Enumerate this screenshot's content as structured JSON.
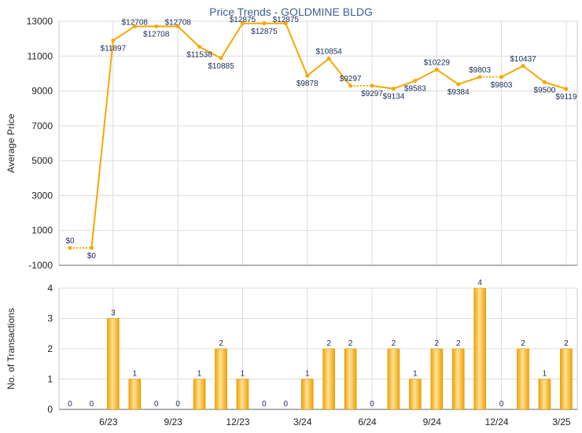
{
  "chart_data": [
    {
      "type": "line",
      "title": "Price Trends - GOLDMINE BLDG",
      "xlabel": "",
      "ylabel": "Average Price",
      "ylim": [
        -1000,
        13000
      ],
      "yticks": [
        -1000,
        1000,
        3000,
        5000,
        7000,
        9000,
        11000,
        13000
      ],
      "grid": true,
      "x_tick_labels": [
        "6/23",
        "9/23",
        "12/23",
        "3/24",
        "6/24",
        "9/24",
        "12/24",
        "3/25"
      ],
      "x_tick_positions": [
        2,
        5,
        8,
        11,
        14,
        17,
        20,
        23
      ],
      "x": [
        0,
        1,
        2,
        3,
        4,
        5,
        6,
        7,
        8,
        9,
        10,
        11,
        12,
        13,
        14,
        15,
        16,
        17,
        18,
        19,
        20,
        21,
        22,
        23
      ],
      "values": [
        0,
        0,
        11897,
        12708,
        12708,
        12708,
        11538,
        10885,
        12875,
        12875,
        12875,
        9878,
        10854,
        9297,
        9297,
        9134,
        9583,
        10229,
        9384,
        9803,
        9803,
        10437,
        9500,
        9119
      ],
      "labels": [
        "$0",
        "$0",
        "$11897",
        "$12708",
        "$12708",
        "$12708",
        "$11538",
        "$10885",
        "$12875",
        "$12875",
        "$12875",
        "$9878",
        "$10854",
        "$9297",
        "$9297",
        "$9134",
        "$9583",
        "$10229",
        "$9384",
        "$9803",
        "$9803",
        "$10437",
        "$9500",
        "$9119"
      ],
      "dashed_segments": [
        [
          0,
          1
        ],
        [
          13,
          14
        ],
        [
          19,
          20
        ]
      ],
      "color": "#f5a800"
    },
    {
      "type": "bar",
      "xlabel": "",
      "ylabel": "No. of Transactions",
      "ylim": [
        0,
        4
      ],
      "yticks": [
        0,
        1,
        2,
        3,
        4
      ],
      "grid": true,
      "x_tick_labels": [
        "6/23",
        "9/23",
        "12/23",
        "3/24",
        "6/24",
        "9/24",
        "12/24",
        "3/25"
      ],
      "x_tick_positions": [
        2,
        5,
        8,
        11,
        14,
        17,
        20,
        23
      ],
      "x": [
        0,
        1,
        2,
        3,
        4,
        5,
        6,
        7,
        8,
        9,
        10,
        11,
        12,
        13,
        14,
        15,
        16,
        17,
        18,
        19,
        20,
        21,
        22,
        23
      ],
      "values": [
        0,
        0,
        3,
        1,
        0,
        0,
        1,
        2,
        1,
        0,
        0,
        1,
        2,
        2,
        0,
        2,
        1,
        2,
        2,
        4,
        0,
        2,
        1,
        2
      ],
      "color": "#f5a800"
    }
  ]
}
